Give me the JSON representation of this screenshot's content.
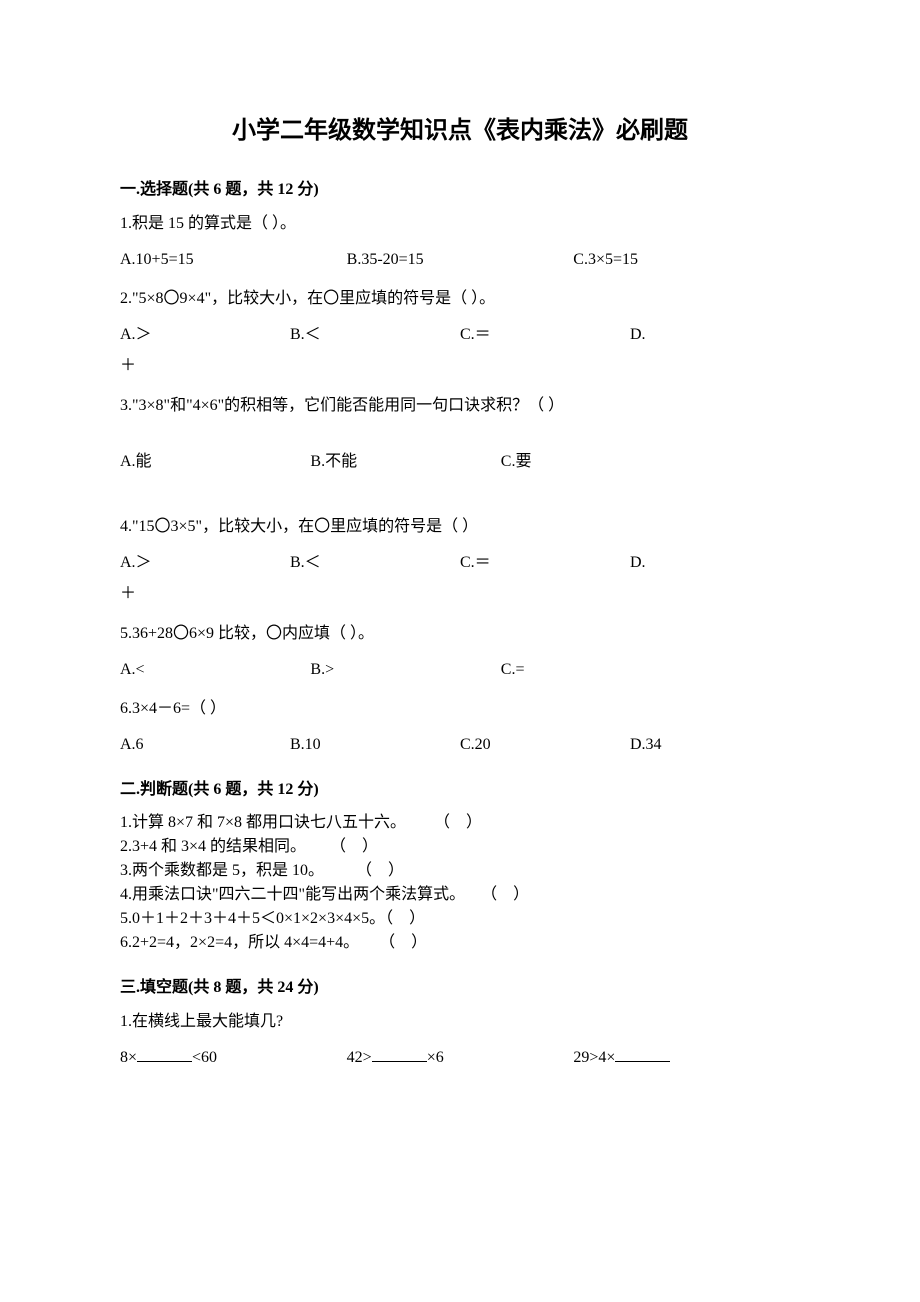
{
  "title": "小学二年级数学知识点《表内乘法》必刷题",
  "section1": {
    "header": "一.选择题(共 6 题，共 12 分)",
    "q1": {
      "text": "1.积是 15 的算式是（    ）。",
      "a": "A.10+5=15",
      "b": "B.35-20=15",
      "c": "C.3×5=15"
    },
    "q2": {
      "text": "2.\"5×8〇9×4\"，比较大小，在〇里应填的符号是（   ）。",
      "a": "A.＞",
      "b": "B.＜",
      "c": "C.＝",
      "d": "D.",
      "d2": "＋"
    },
    "q3": {
      "text": "3.\"3×8\"和\"4×6\"的积相等，它们能否能用同一句口诀求积？（    ）",
      "a": "A.能",
      "b": "B.不能",
      "c": "C.要"
    },
    "q4": {
      "text": "4.\"15〇3×5\"，比较大小，在〇里应填的符号是（   ）",
      "a": "A.＞",
      "b": "B.＜",
      "c": "C.＝",
      "d": "D.",
      "d2": "＋"
    },
    "q5": {
      "text": "5.36+28〇6×9 比较，〇内应填（    ）。",
      "a": "A.<",
      "b": "B.>",
      "c": "C.="
    },
    "q6": {
      "text": "6.3×4－6=（    ）",
      "a": "A.6",
      "b": "B.10",
      "c": "C.20",
      "d": "D.34"
    }
  },
  "section2": {
    "header": "二.判断题(共 6 题，共 12 分)",
    "j1": "1.计算 8×7 和 7×8 都用口诀七八五十六。       （    ）",
    "j2": "2.3+4 和 3×4 的结果相同。      （    ）",
    "j3": "3.两个乘数都是 5，积是 10。        （    ）",
    "j4": "4.用乘法口诀\"四六二十四\"能写出两个乘法算式。    （    ）",
    "j5": "5.0＋1＋2＋3＋4＋5＜0×1×2×3×4×5。（    ）",
    "j6": "6.2+2=4，2×2=4，所以 4×4=4+4。     （    ）"
  },
  "section3": {
    "header": "三.填空题(共 8 题，共 24 分)",
    "q1": {
      "text": "1.在横线上最大能填几?",
      "f1a": "8×",
      "f1b": "<60",
      "f2a": "42>",
      "f2b": "×6",
      "f3a": "29>4×"
    }
  }
}
